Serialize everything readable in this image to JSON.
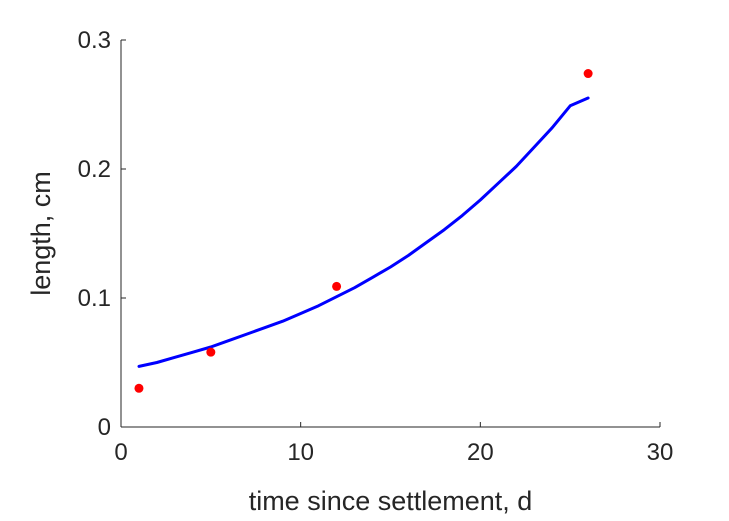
{
  "chart_data": {
    "type": "scatter",
    "xlabel": "time since settlement, d",
    "ylabel": "length, cm",
    "xlim": [
      0,
      30
    ],
    "ylim": [
      0,
      0.3
    ],
    "xticks": [
      0,
      10,
      20,
      30
    ],
    "xtick_labels": [
      "0",
      "10",
      "20",
      "30"
    ],
    "yticks": [
      0,
      0.1,
      0.2,
      0.3
    ],
    "ytick_labels": [
      "0",
      "0.1",
      "0.2",
      "0.3"
    ],
    "grid": false,
    "box": false,
    "series": [
      {
        "kind": "points",
        "color": "#ff0000",
        "x": [
          1,
          5,
          12,
          26
        ],
        "y": [
          0.03,
          0.058,
          0.109,
          0.274
        ]
      },
      {
        "kind": "line",
        "color": "#0000ff",
        "x": [
          1,
          2,
          3,
          4,
          5,
          6,
          7,
          8,
          9,
          10,
          11,
          12,
          13,
          14,
          15,
          16,
          17,
          18,
          19,
          20,
          21,
          22,
          23,
          24,
          25,
          26
        ],
        "y": [
          0.047,
          0.05,
          0.054,
          0.058,
          0.062,
          0.067,
          0.072,
          0.077,
          0.082,
          0.088,
          0.094,
          0.101,
          0.108,
          0.116,
          0.124,
          0.133,
          0.143,
          0.153,
          0.164,
          0.176,
          0.189,
          0.202,
          0.217,
          0.232,
          0.249,
          0.255
        ]
      }
    ]
  }
}
